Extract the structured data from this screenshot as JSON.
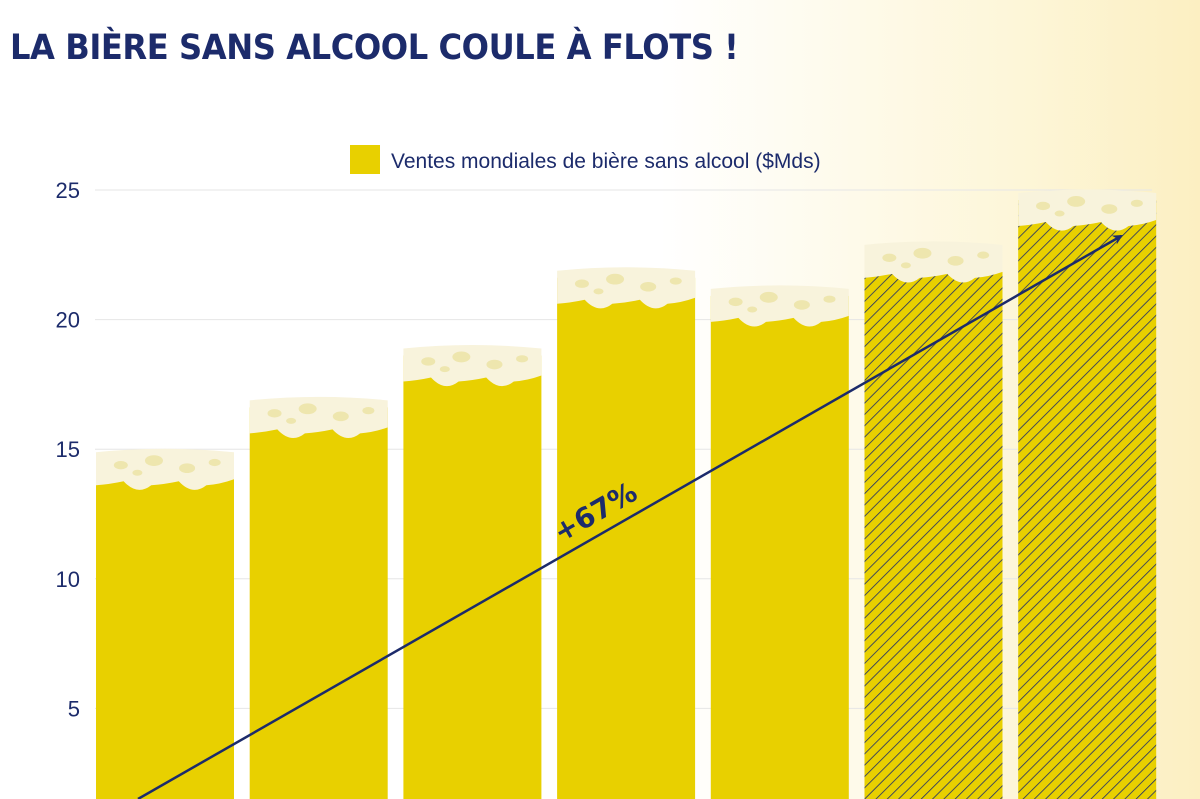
{
  "title": "LA BIÈRE SANS ALCOOL COULE À FLOTS !",
  "colors": {
    "bar": "#e8d000",
    "foam": "#f8f3dc",
    "foam_spot": "#e9df9a",
    "text": "#1c2b6b",
    "grid": "#e6e6e6"
  },
  "chart_data": {
    "type": "bar",
    "series": [
      {
        "name": "Ventes mondiales de bière sans alcool ($Mds)",
        "values": [
          15,
          17,
          19,
          22,
          21.3,
          23,
          25
        ],
        "projected": [
          false,
          false,
          false,
          false,
          false,
          true,
          true
        ]
      }
    ],
    "ylim": [
      0,
      25
    ],
    "yticks": [
      5,
      10,
      15,
      20,
      25
    ],
    "grid": true,
    "legend": "top-center",
    "annotation": {
      "label": "+67%",
      "type": "arrow",
      "from_bar": 0,
      "to_bar": 6
    }
  }
}
